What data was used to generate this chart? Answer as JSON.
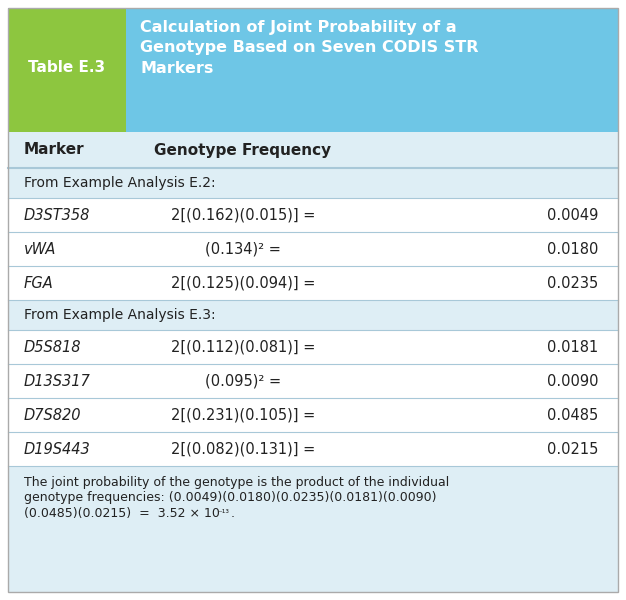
{
  "table_label": "Table E.3",
  "title_text": "Calculation of Joint Probability of a\nGenotype Based on Seven CODIS STR\nMarkers",
  "header_col1": "Marker",
  "header_col2": "Genotype Frequency",
  "section1_label": "From Example Analysis E.2:",
  "section2_label": "From Example Analysis E.3:",
  "rows": [
    {
      "marker": "D3ST358",
      "formula": "2[(0.162)(0.015)] =",
      "value": "0.0049",
      "section": 1
    },
    {
      "marker": "vWA",
      "formula": "(0.134)² =",
      "value": "0.0180",
      "section": 1
    },
    {
      "marker": "FGA",
      "formula": "2[(0.125)(0.094)] =",
      "value": "0.0235",
      "section": 1
    },
    {
      "marker": "D5S818",
      "formula": "2[(0.112)(0.081)] =",
      "value": "0.0181",
      "section": 2
    },
    {
      "marker": "D13S317",
      "formula": "(0.095)² =",
      "value": "0.0090",
      "section": 2
    },
    {
      "marker": "D7S820",
      "formula": "2[(0.231)(0.105)] =",
      "value": "0.0485",
      "section": 2
    },
    {
      "marker": "D19S443",
      "formula": "2[(0.082)(0.131)] =",
      "value": "0.0215",
      "section": 2
    }
  ],
  "footer_line1": "The joint probability of the genotype is the product of the individual",
  "footer_line2": "genotype frequencies: (0.0049)(0.0180)(0.0235)(0.0181)(0.0090)",
  "footer_line3_pre": "(0.0485)(0.0215)  =  3.52 × 10",
  "footer_line3_sup": "⁻¹³",
  "footer_line3_post": ".",
  "color_green": "#8dc63f",
  "color_blue_header": "#6ec6e6",
  "color_light_blue_bg": "#deeef5",
  "color_white": "#ffffff",
  "color_dark_text": "#222222",
  "color_row_line": "#a8c8d8",
  "outer_border": "#aaaaaa"
}
